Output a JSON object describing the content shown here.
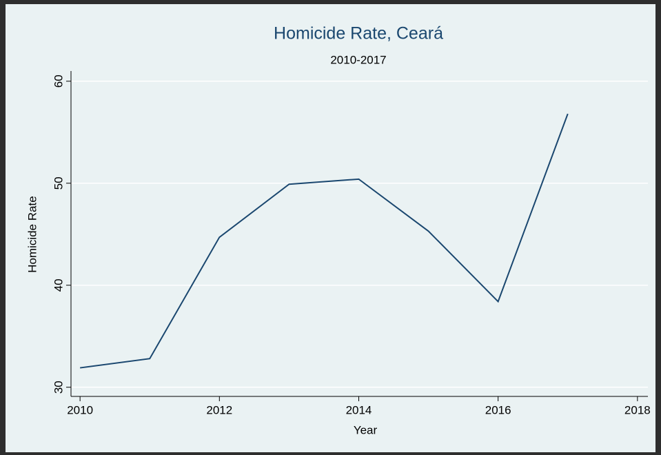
{
  "chart_data": {
    "type": "line",
    "title": "Homicide Rate, Ceará",
    "subtitle": "2010-2017",
    "x_label": "Year",
    "y_label": "Homicide Rate",
    "x": [
      2010,
      2011,
      2012,
      2013,
      2014,
      2015,
      2016,
      2017
    ],
    "series": [
      {
        "name": "Homicide Rate",
        "color": "#1a476f",
        "values": [
          31.9,
          32.8,
          44.7,
          49.9,
          50.4,
          45.3,
          38.4,
          56.8
        ]
      }
    ],
    "xlim": [
      2009.87,
      2018.15
    ],
    "xticks": [
      2010,
      2012,
      2014,
      2016,
      2018
    ],
    "ylim": [
      29.1,
      61
    ],
    "yticks": [
      30,
      40,
      50,
      60
    ],
    "grid": true
  }
}
